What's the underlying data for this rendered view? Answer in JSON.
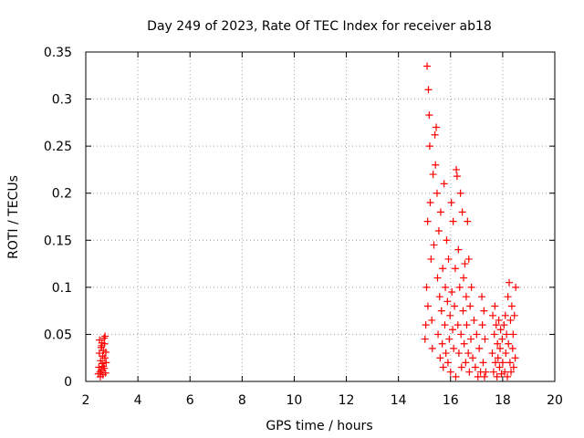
{
  "chart_data": {
    "type": "scatter",
    "title": "Day 249 of 2023, Rate Of TEC Index for receiver ab18",
    "xlabel": "GPS time / hours",
    "ylabel": "ROTI / TECUs",
    "xlim": [
      2,
      20
    ],
    "ylim": [
      0,
      0.35
    ],
    "x_ticks": [
      "2",
      "4",
      "6",
      "8",
      "10",
      "12",
      "14",
      "16",
      "18",
      "20"
    ],
    "y_ticks": [
      "0",
      "0.05",
      "0.1",
      "0.15",
      "0.2",
      "0.25",
      "0.3",
      "0.35"
    ],
    "grid": true,
    "marker": "+",
    "marker_color": "#ff0000",
    "series": [
      {
        "values": [
          [
            2.48,
            0.008
          ],
          [
            2.5,
            0.015
          ],
          [
            2.52,
            0.03
          ],
          [
            2.53,
            0.044
          ],
          [
            2.55,
            0.01
          ],
          [
            2.57,
            0.022
          ],
          [
            2.59,
            0.036
          ],
          [
            2.6,
            0.012
          ],
          [
            2.62,
            0.041
          ],
          [
            2.63,
            0.019
          ],
          [
            2.65,
            0.027
          ],
          [
            2.66,
            0.007
          ],
          [
            2.68,
            0.033
          ],
          [
            2.7,
            0.046
          ],
          [
            2.71,
            0.014
          ],
          [
            2.73,
            0.025
          ],
          [
            2.74,
            0.048
          ],
          [
            2.76,
            0.009
          ],
          [
            2.77,
            0.031
          ],
          [
            2.78,
            0.02
          ],
          [
            2.56,
            0.005
          ],
          [
            2.61,
            0.038
          ],
          [
            2.67,
            0.016
          ],
          [
            2.72,
            0.04
          ],
          [
            15.02,
            0.045
          ],
          [
            15.05,
            0.06
          ],
          [
            15.08,
            0.1
          ],
          [
            15.1,
            0.335
          ],
          [
            15.12,
            0.17
          ],
          [
            15.13,
            0.08
          ],
          [
            15.15,
            0.31
          ],
          [
            15.18,
            0.283
          ],
          [
            15.2,
            0.25
          ],
          [
            15.22,
            0.19
          ],
          [
            15.25,
            0.13
          ],
          [
            15.28,
            0.065
          ],
          [
            15.3,
            0.035
          ],
          [
            15.33,
            0.22
          ],
          [
            15.36,
            0.145
          ],
          [
            15.4,
            0.262
          ],
          [
            15.42,
            0.23
          ],
          [
            15.45,
            0.27
          ],
          [
            15.48,
            0.2
          ],
          [
            15.5,
            0.11
          ],
          [
            15.52,
            0.05
          ],
          [
            15.55,
            0.16
          ],
          [
            15.58,
            0.09
          ],
          [
            15.6,
            0.025
          ],
          [
            15.62,
            0.18
          ],
          [
            15.65,
            0.075
          ],
          [
            15.68,
            0.04
          ],
          [
            15.7,
            0.12
          ],
          [
            15.72,
            0.015
          ],
          [
            15.75,
            0.21
          ],
          [
            15.78,
            0.06
          ],
          [
            15.8,
            0.1
          ],
          [
            15.82,
            0.03
          ],
          [
            15.85,
            0.15
          ],
          [
            15.88,
            0.085
          ],
          [
            15.9,
            0.02
          ],
          [
            15.92,
            0.13
          ],
          [
            15.95,
            0.045
          ],
          [
            15.98,
            0.07
          ],
          [
            16.0,
            0.01
          ],
          [
            16.03,
            0.19
          ],
          [
            16.05,
            0.095
          ],
          [
            16.08,
            0.055
          ],
          [
            16.1,
            0.17
          ],
          [
            16.12,
            0.035
          ],
          [
            16.15,
            0.08
          ],
          [
            16.18,
            0.12
          ],
          [
            16.2,
            0.005
          ],
          [
            16.22,
            0.225
          ],
          [
            16.25,
            0.218
          ],
          [
            16.28,
            0.06
          ],
          [
            16.3,
            0.14
          ],
          [
            16.32,
            0.03
          ],
          [
            16.35,
            0.1
          ],
          [
            16.38,
            0.2
          ],
          [
            16.4,
            0.05
          ],
          [
            16.42,
            0.015
          ],
          [
            16.45,
            0.18
          ],
          [
            16.48,
            0.075
          ],
          [
            16.5,
            0.11
          ],
          [
            16.52,
            0.04
          ],
          [
            16.55,
            0.125
          ],
          [
            16.58,
            0.02
          ],
          [
            16.6,
            0.09
          ],
          [
            16.62,
            0.06
          ],
          [
            16.65,
            0.17
          ],
          [
            16.68,
            0.03
          ],
          [
            16.7,
            0.13
          ],
          [
            16.72,
            0.01
          ],
          [
            16.75,
            0.08
          ],
          [
            16.78,
            0.045
          ],
          [
            16.8,
            0.1
          ],
          [
            16.85,
            0.025
          ],
          [
            16.9,
            0.065
          ],
          [
            16.95,
            0.015
          ],
          [
            17.0,
            0.05
          ],
          [
            17.05,
            0.005
          ],
          [
            17.1,
            0.035
          ],
          [
            17.15,
            0.01
          ],
          [
            17.2,
            0.09
          ],
          [
            17.22,
            0.06
          ],
          [
            17.25,
            0.02
          ],
          [
            17.28,
            0.075
          ],
          [
            17.3,
            0.005
          ],
          [
            17.32,
            0.045
          ],
          [
            17.35,
            0.01
          ],
          [
            17.6,
            0.03
          ],
          [
            17.62,
            0.07
          ],
          [
            17.65,
            0.01
          ],
          [
            17.68,
            0.05
          ],
          [
            17.7,
            0.08
          ],
          [
            17.72,
            0.02
          ],
          [
            17.75,
            0.06
          ],
          [
            17.78,
            0.005
          ],
          [
            17.8,
            0.04
          ],
          [
            17.82,
            0.025
          ],
          [
            17.85,
            0.065
          ],
          [
            17.88,
            0.015
          ],
          [
            17.9,
            0.035
          ],
          [
            17.92,
            0.055
          ],
          [
            17.95,
            0.008
          ],
          [
            17.98,
            0.045
          ],
          [
            18.0,
            0.02
          ],
          [
            18.05,
            0.06
          ],
          [
            18.08,
            0.01
          ],
          [
            18.1,
            0.07
          ],
          [
            18.12,
            0.03
          ],
          [
            18.15,
            0.05
          ],
          [
            18.18,
            0.005
          ],
          [
            18.2,
            0.09
          ],
          [
            18.22,
            0.04
          ],
          [
            18.25,
            0.105
          ],
          [
            18.28,
            0.02
          ],
          [
            18.3,
            0.065
          ],
          [
            18.32,
            0.01
          ],
          [
            18.35,
            0.08
          ],
          [
            18.38,
            0.035
          ],
          [
            18.4,
            0.05
          ],
          [
            18.42,
            0.015
          ],
          [
            18.45,
            0.07
          ],
          [
            18.48,
            0.025
          ],
          [
            18.5,
            0.1
          ]
        ]
      }
    ]
  }
}
